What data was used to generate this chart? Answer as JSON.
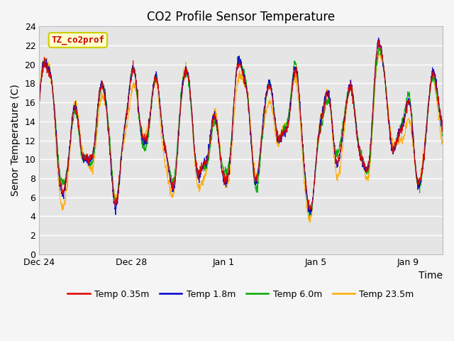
{
  "title": "CO2 Profile Sensor Temperature",
  "ylabel": "Senor Temperature (C)",
  "xlabel": "Time",
  "ylim": [
    0,
    24
  ],
  "yticks": [
    0,
    2,
    4,
    6,
    8,
    10,
    12,
    14,
    16,
    18,
    20,
    22,
    24
  ],
  "xtick_labels": [
    "Dec 24",
    "Dec 28",
    "Jan 1",
    "Jan 5",
    "Jan 9"
  ],
  "xtick_days": [
    0,
    4,
    8,
    12,
    16
  ],
  "legend_entries": [
    "Temp 0.35m",
    "Temp 1.8m",
    "Temp 6.0m",
    "Temp 23.5m"
  ],
  "line_colors": [
    "#dd0000",
    "#0000cc",
    "#00aa00",
    "#ffaa00"
  ],
  "annotation_text": "TZ_co2prof",
  "annotation_color": "#cc0000",
  "annotation_bg": "#ffffcc",
  "annotation_border": "#cccc00",
  "background_color": "#e5e5e5",
  "grid_color": "#ffffff",
  "title_fontsize": 12,
  "axis_fontsize": 10,
  "tick_fontsize": 9,
  "legend_fontsize": 9
}
